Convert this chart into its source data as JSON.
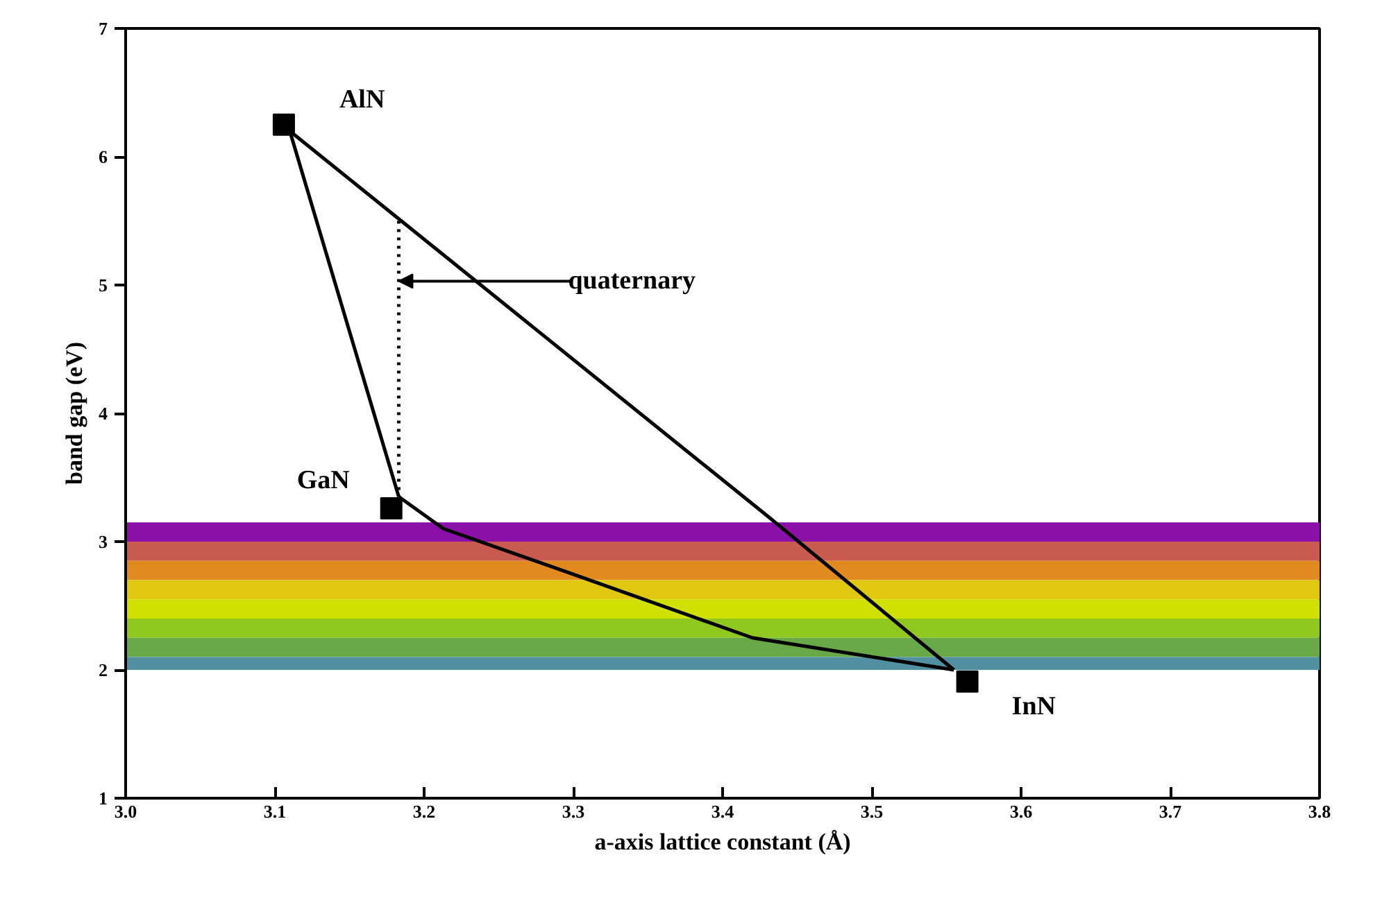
{
  "chart_data": {
    "type": "scatter",
    "xlabel": "a-axis lattice constant (Å)",
    "ylabel": "band gap (eV)",
    "xlim": [
      3.0,
      3.8
    ],
    "ylim": [
      1,
      7
    ],
    "xticks": [
      {
        "value": 3.0,
        "label": "3.0"
      },
      3.1,
      3.2,
      3.3,
      3.4,
      3.5,
      3.6,
      3.7,
      {
        "value": 3.8,
        "label": "3.8"
      }
    ],
    "yticks": [
      1,
      2,
      3,
      4,
      5,
      6,
      7
    ],
    "grid": false,
    "series": [
      {
        "type": "line",
        "color": "#000000",
        "x": [
          3.11,
          3.43,
          3.555
        ],
        "values": [
          6.2,
          3.2,
          2.0
        ],
        "marker": "none",
        "line_style": "solid"
      },
      {
        "type": "line",
        "color": "#000000",
        "x": [
          3.11,
          3.183
        ],
        "values": [
          6.2,
          3.35
        ],
        "marker": "none",
        "line_style": "solid"
      },
      {
        "type": "line",
        "color": "#000000",
        "x": [
          3.183,
          3.213,
          3.294,
          3.42,
          3.555
        ],
        "values": [
          3.35,
          3.1,
          2.77,
          2.25,
          2.0
        ],
        "marker": "none",
        "line_style": "solid"
      },
      {
        "type": "line",
        "color": "#000000",
        "x": [
          3.183,
          3.183
        ],
        "values": [
          5.5,
          3.35
        ],
        "marker": "none",
        "line_style": "dotted"
      },
      {
        "color": "#000000",
        "x": [
          3.106,
          3.178,
          3.564
        ],
        "values": [
          6.25,
          3.26,
          1.91
        ],
        "marker": "square"
      }
    ],
    "bands": [
      {
        "axis": "y",
        "from": 3.0,
        "to": 3.15,
        "color": "#8a10a8"
      },
      {
        "axis": "y",
        "from": 2.85,
        "to": 3.0,
        "color": "#c85a50"
      },
      {
        "axis": "y",
        "from": 2.7,
        "to": 2.85,
        "color": "#e08a20"
      },
      {
        "axis": "y",
        "from": 2.55,
        "to": 2.7,
        "color": "#e0c810"
      },
      {
        "axis": "y",
        "from": 2.4,
        "to": 2.55,
        "color": "#d0e000"
      },
      {
        "axis": "y",
        "from": 2.25,
        "to": 2.4,
        "color": "#90c820"
      },
      {
        "axis": "y",
        "from": 2.1,
        "to": 2.25,
        "color": "#68a848"
      },
      {
        "axis": "y",
        "from": 2.0,
        "to": 2.1,
        "color": "#5090a0"
      }
    ],
    "annotations": [
      {
        "text": "AlN",
        "x": 3.106,
        "y": 6.25
      },
      {
        "text": "GaN",
        "x": 3.178,
        "y": 3.26
      },
      {
        "text": "InN",
        "x": 3.564,
        "y": 1.91
      },
      {
        "text": "quaternary",
        "x": 3.183,
        "y": 5.03
      }
    ]
  }
}
